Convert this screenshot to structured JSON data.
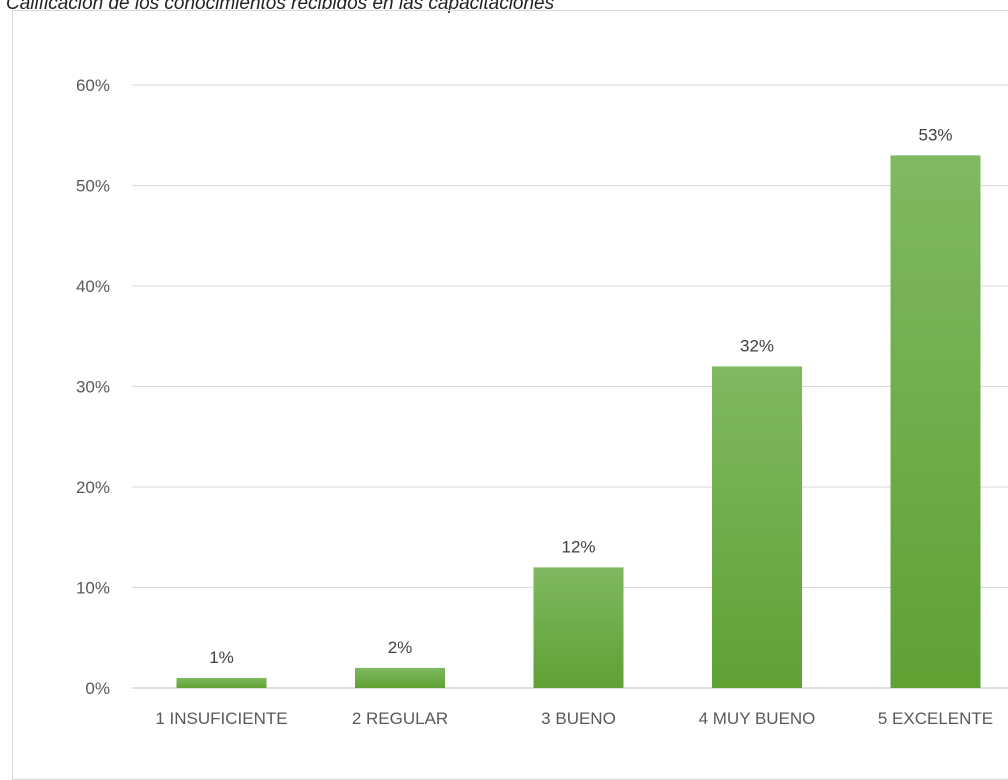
{
  "caption": "Calificación de los conocimientos recibidos en las capacitaciones",
  "colors": {
    "bar_top": "#7fb961",
    "bar_bottom": "#5fa133",
    "grid": "#d9d9d9",
    "axis_text": "#595959"
  },
  "chart_data": {
    "type": "bar",
    "title": "",
    "xlabel": "",
    "ylabel": "",
    "categories": [
      "1 INSUFICIENTE",
      "2 REGULAR",
      "3 BUENO",
      "4 MUY BUENO",
      "5 EXCELENTE"
    ],
    "values": [
      1,
      2,
      12,
      32,
      53
    ],
    "value_labels": [
      "1%",
      "2%",
      "12%",
      "32%",
      "53%"
    ],
    "ylim": [
      0,
      60
    ],
    "yticks": [
      0,
      10,
      20,
      30,
      40,
      50,
      60
    ],
    "ytick_labels": [
      "0%",
      "10%",
      "20%",
      "30%",
      "40%",
      "50%",
      "60%"
    ],
    "grid": true,
    "legend": "none"
  }
}
